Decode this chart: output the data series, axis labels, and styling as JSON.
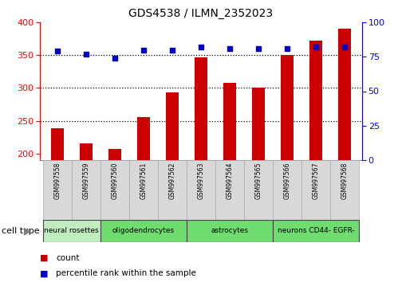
{
  "title": "GDS4538 / ILMN_2352023",
  "samples": [
    "GSM997558",
    "GSM997559",
    "GSM997560",
    "GSM997561",
    "GSM997562",
    "GSM997563",
    "GSM997564",
    "GSM997565",
    "GSM997566",
    "GSM997567",
    "GSM997568"
  ],
  "counts": [
    238,
    216,
    207,
    256,
    293,
    347,
    308,
    300,
    350,
    372,
    390
  ],
  "percentiles": [
    79,
    77,
    74,
    80,
    80,
    82,
    81,
    81,
    81,
    82,
    82
  ],
  "cell_type_groups": [
    {
      "label": "neural rosettes",
      "start": 0,
      "end": 1,
      "color": "#c0ecc0"
    },
    {
      "label": "oligodendrocytes",
      "start": 2,
      "end": 4,
      "color": "#6edc6e"
    },
    {
      "label": "astrocytes",
      "start": 5,
      "end": 7,
      "color": "#6edc6e"
    },
    {
      "label": "neurons CD44- EGFR-",
      "start": 8,
      "end": 10,
      "color": "#6edc6e"
    }
  ],
  "bar_color": "#cc0000",
  "dot_color": "#0000cc",
  "ylim_left": [
    190,
    400
  ],
  "ylim_right": [
    0,
    100
  ],
  "yticks_left": [
    200,
    250,
    300,
    350,
    400
  ],
  "yticks_right": [
    0,
    25,
    50,
    75,
    100
  ],
  "hgrid_vals": [
    250,
    300,
    350
  ],
  "bg_color": "#ffffff",
  "gray_box_color": "#d8d8d8",
  "label_fontsize": 5.5,
  "title_fontsize": 10
}
